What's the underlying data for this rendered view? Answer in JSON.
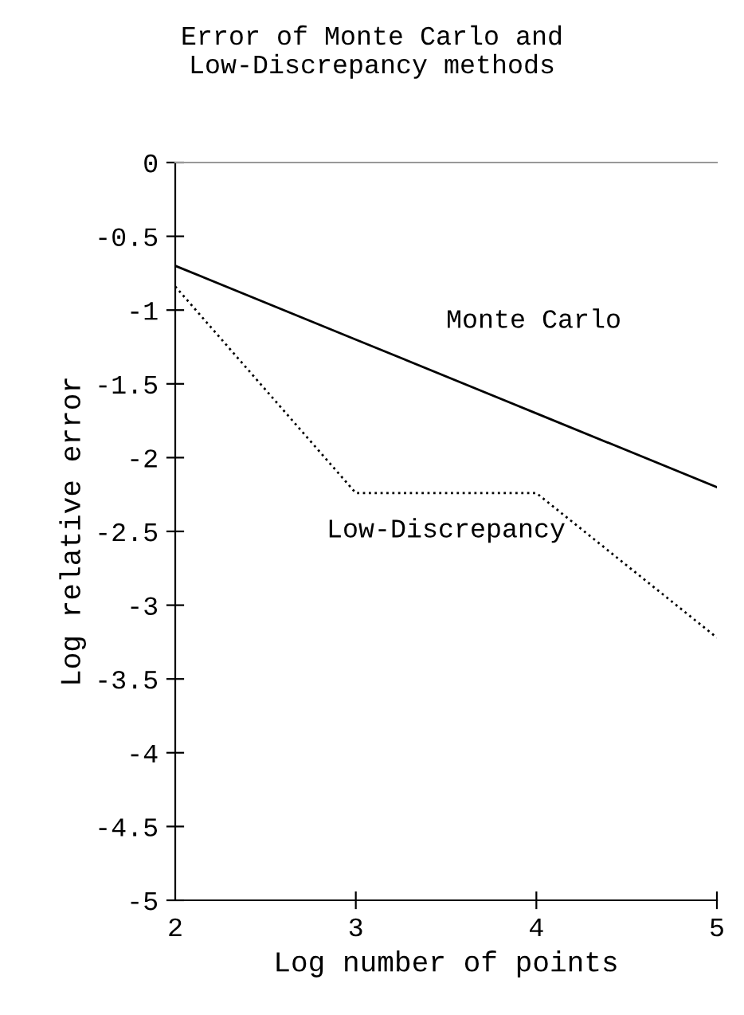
{
  "chart_data": {
    "type": "line",
    "title": "Error of Monte Carlo and\nLow-Discrepancy methods",
    "xlabel": "Log number of points",
    "ylabel": "Log relative error",
    "x": [
      2,
      3,
      4,
      5
    ],
    "series": [
      {
        "name": "Monte Carlo",
        "color": "#000000",
        "line_style": "solid",
        "values": [
          -0.7,
          -1.2,
          -1.7,
          -2.2
        ]
      },
      {
        "name": "Low-Discrepancy",
        "color": "#000000",
        "line_style": "dotted",
        "values": [
          -0.84,
          -2.24,
          -2.24,
          -3.22
        ]
      }
    ],
    "xlim": [
      2,
      5
    ],
    "ylim": [
      -5,
      0
    ],
    "xticks": [
      2,
      3,
      4,
      5
    ],
    "yticks": [
      0,
      -0.5,
      -1,
      -1.5,
      -2,
      -2.5,
      -3,
      -3.5,
      -4,
      -4.5,
      -5
    ],
    "grid": false,
    "legend": false,
    "marker": "none"
  }
}
